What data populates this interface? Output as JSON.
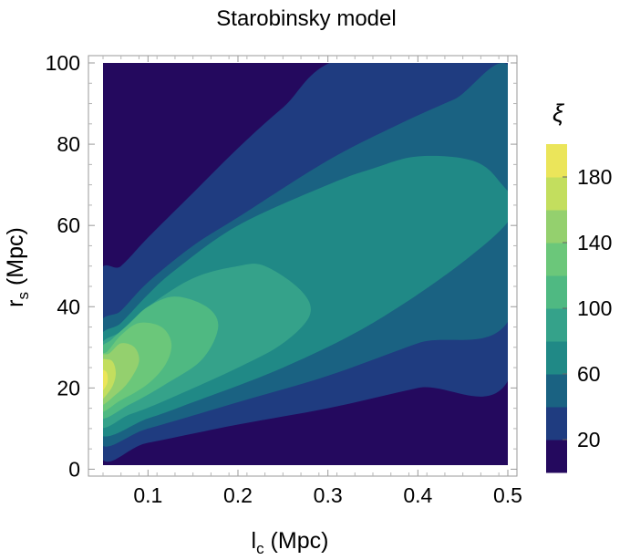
{
  "chart_data": {
    "type": "contour",
    "title": "Starobinsky model",
    "xlabel": {
      "main": "l",
      "sub": "c",
      "unit": " (Mpc)"
    },
    "ylabel": {
      "main": "r",
      "sub": "s",
      "unit": " (Mpc)"
    },
    "xlim": [
      0.05,
      0.5
    ],
    "ylim": [
      1,
      100
    ],
    "xticks": [
      {
        "value": 0.1,
        "label": "0.1"
      },
      {
        "value": 0.2,
        "label": "0.2"
      },
      {
        "value": 0.3,
        "label": "0.3"
      },
      {
        "value": 0.4,
        "label": "0.4"
      },
      {
        "value": 0.5,
        "label": "0.5"
      }
    ],
    "yticks": [
      {
        "value": 0,
        "label": "0"
      },
      {
        "value": 20,
        "label": "20"
      },
      {
        "value": 40,
        "label": "40"
      },
      {
        "value": 60,
        "label": "60"
      },
      {
        "value": 80,
        "label": "80"
      },
      {
        "value": 100,
        "label": "100"
      }
    ],
    "colorbar": {
      "label": "ξ",
      "range": [
        0,
        200
      ],
      "levels": [
        0,
        20,
        40,
        60,
        80,
        100,
        120,
        140,
        160,
        180,
        200
      ],
      "colors": [
        "#24095e",
        "#1f3c80",
        "#1a6282",
        "#208986",
        "#35a28a",
        "#4fb982",
        "#6bc77a",
        "#94d06e",
        "#c3de5e",
        "#ebe55a"
      ],
      "ticks": [
        {
          "value": 20,
          "label": "20"
        },
        {
          "value": 60,
          "label": "60"
        },
        {
          "value": 100,
          "label": "100"
        },
        {
          "value": 140,
          "label": "140"
        },
        {
          "value": 180,
          "label": "180"
        }
      ]
    },
    "contours": [
      {
        "level": 20,
        "points": [
          [
            0.05,
            4.5
          ],
          [
            0.1,
            6.5
          ],
          [
            0.2,
            11
          ],
          [
            0.3,
            15
          ],
          [
            0.4,
            20
          ],
          [
            0.5,
            25
          ],
          [
            0.5,
            100
          ],
          [
            0.32,
            100
          ],
          [
            0.25,
            89
          ],
          [
            0.2,
            79
          ],
          [
            0.15,
            68
          ],
          [
            0.1,
            57
          ],
          [
            0.07,
            50
          ],
          [
            0.05,
            46
          ]
        ]
      },
      {
        "level": 40,
        "points": [
          [
            0.05,
            7
          ],
          [
            0.1,
            10
          ],
          [
            0.2,
            16.5
          ],
          [
            0.3,
            23
          ],
          [
            0.4,
            31
          ],
          [
            0.5,
            39
          ],
          [
            0.5,
            97
          ],
          [
            0.44,
            91
          ],
          [
            0.38,
            85
          ],
          [
            0.3,
            76
          ],
          [
            0.2,
            62
          ],
          [
            0.15,
            55
          ],
          [
            0.1,
            46
          ],
          [
            0.07,
            39
          ],
          [
            0.05,
            34
          ]
        ]
      },
      {
        "level": 60,
        "points": [
          [
            0.05,
            9
          ],
          [
            0.1,
            12.5
          ],
          [
            0.15,
            16.5
          ],
          [
            0.25,
            25
          ],
          [
            0.35,
            36
          ],
          [
            0.45,
            51
          ],
          [
            0.5,
            63
          ],
          [
            0.49,
            71
          ],
          [
            0.46,
            76
          ],
          [
            0.4,
            77
          ],
          [
            0.35,
            74
          ],
          [
            0.3,
            70
          ],
          [
            0.2,
            60
          ],
          [
            0.13,
            49
          ],
          [
            0.1,
            43
          ],
          [
            0.07,
            36
          ],
          [
            0.05,
            31
          ]
        ]
      },
      {
        "level": 80,
        "points": [
          [
            0.05,
            11
          ],
          [
            0.08,
            13.5
          ],
          [
            0.12,
            17
          ],
          [
            0.2,
            25
          ],
          [
            0.25,
            31
          ],
          [
            0.28,
            38
          ],
          [
            0.27,
            44
          ],
          [
            0.23,
            50
          ],
          [
            0.2,
            50
          ],
          [
            0.15,
            47
          ],
          [
            0.1,
            40
          ],
          [
            0.07,
            34
          ],
          [
            0.05,
            29
          ]
        ]
      },
      {
        "level": 100,
        "points": [
          [
            0.05,
            13
          ],
          [
            0.08,
            16
          ],
          [
            0.12,
            21
          ],
          [
            0.16,
            27
          ],
          [
            0.178,
            35
          ],
          [
            0.165,
            40
          ],
          [
            0.13,
            42.5
          ],
          [
            0.1,
            40
          ],
          [
            0.08,
            36
          ],
          [
            0.06,
            32
          ],
          [
            0.05,
            28
          ]
        ]
      },
      {
        "level": 120,
        "points": [
          [
            0.05,
            14.5
          ],
          [
            0.07,
            17
          ],
          [
            0.1,
            21
          ],
          [
            0.12,
            26
          ],
          [
            0.126,
            31
          ],
          [
            0.115,
            35
          ],
          [
            0.09,
            36
          ],
          [
            0.07,
            33
          ],
          [
            0.055,
            29
          ],
          [
            0.05,
            27
          ]
        ]
      },
      {
        "level": 140,
        "points": [
          [
            0.05,
            16
          ],
          [
            0.065,
            18.5
          ],
          [
            0.08,
            22
          ],
          [
            0.09,
            26.5
          ],
          [
            0.085,
            30
          ],
          [
            0.07,
            31
          ],
          [
            0.057,
            28.5
          ],
          [
            0.05,
            27
          ]
        ]
      },
      {
        "level": 160,
        "points": [
          [
            0.05,
            17
          ],
          [
            0.058,
            19.5
          ],
          [
            0.064,
            23
          ],
          [
            0.062,
            26
          ],
          [
            0.056,
            27
          ],
          [
            0.05,
            26
          ]
        ]
      },
      {
        "level": 180,
        "points": [
          [
            0.05,
            18.5
          ],
          [
            0.0545,
            21
          ],
          [
            0.0535,
            24
          ],
          [
            0.05,
            24
          ]
        ]
      }
    ]
  }
}
